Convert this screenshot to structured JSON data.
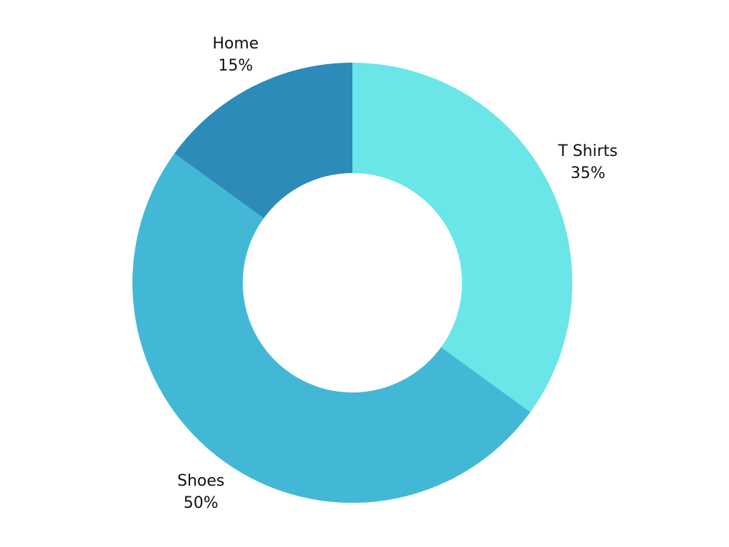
{
  "chart_data": {
    "type": "pie",
    "donut": true,
    "categories": [
      "T Shirts",
      "Shoes",
      "Home"
    ],
    "values": [
      35,
      50,
      15
    ],
    "value_labels": [
      "35%",
      "50%",
      "15%"
    ],
    "colors": [
      "#6ae6e8",
      "#43b8d6",
      "#2d8bba"
    ],
    "start_angle_deg": 0,
    "direction": "clockwise",
    "title": "",
    "legend": "none"
  }
}
